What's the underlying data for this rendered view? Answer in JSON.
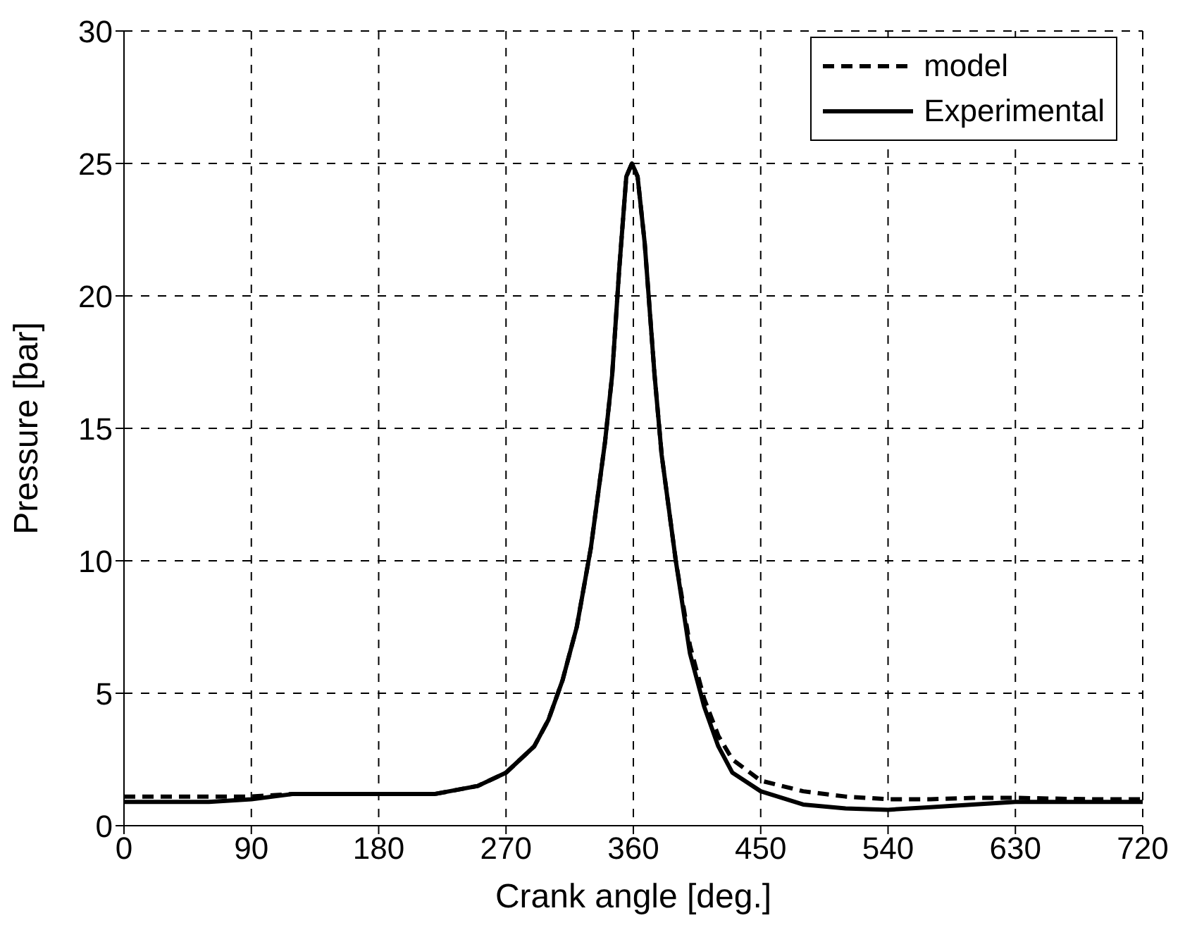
{
  "chart_data": {
    "type": "line",
    "xlabel": "Crank angle [deg.]",
    "ylabel": "Pressure [bar]",
    "xlim": [
      0,
      720
    ],
    "xticks": [
      0,
      90,
      180,
      270,
      360,
      450,
      540,
      630,
      720
    ],
    "ylim": [
      0,
      30
    ],
    "yticks": [
      0,
      5,
      10,
      15,
      20,
      25,
      30
    ],
    "grid": true,
    "legend": "top right",
    "marker": "none",
    "series": [
      {
        "name": "model",
        "color": "#000000",
        "line_style": "dashed",
        "x": [
          0,
          60,
          90,
          120,
          180,
          220,
          250,
          270,
          290,
          300,
          310,
          320,
          330,
          340,
          345,
          350,
          355,
          359,
          363,
          368,
          375,
          380,
          390,
          400,
          410,
          420,
          430,
          450,
          480,
          510,
          540,
          570,
          600,
          630,
          680,
          720
        ],
        "values": [
          1.1,
          1.1,
          1.1,
          1.2,
          1.2,
          1.2,
          1.5,
          2.0,
          3.0,
          4.0,
          5.5,
          7.5,
          10.5,
          14.5,
          17,
          21,
          24.5,
          25,
          24.5,
          22,
          17,
          14,
          10,
          6.8,
          4.8,
          3.4,
          2.5,
          1.7,
          1.3,
          1.1,
          1.0,
          1.0,
          1.05,
          1.05,
          1.0,
          1.0
        ]
      },
      {
        "name": "Experimental",
        "color": "#000000",
        "line_style": "solid",
        "x": [
          0,
          60,
          90,
          120,
          180,
          220,
          250,
          270,
          290,
          300,
          310,
          320,
          330,
          340,
          345,
          350,
          355,
          359,
          363,
          368,
          375,
          380,
          390,
          400,
          410,
          420,
          430,
          450,
          480,
          510,
          540,
          570,
          600,
          630,
          680,
          720
        ],
        "values": [
          0.9,
          0.9,
          1.0,
          1.2,
          1.2,
          1.2,
          1.5,
          2.0,
          3.0,
          4.0,
          5.5,
          7.5,
          10.5,
          14.5,
          17,
          21,
          24.5,
          25,
          24.5,
          22,
          17,
          14,
          10,
          6.5,
          4.5,
          3.0,
          2.0,
          1.3,
          0.8,
          0.65,
          0.6,
          0.7,
          0.8,
          0.9,
          0.9,
          0.9
        ]
      }
    ]
  }
}
